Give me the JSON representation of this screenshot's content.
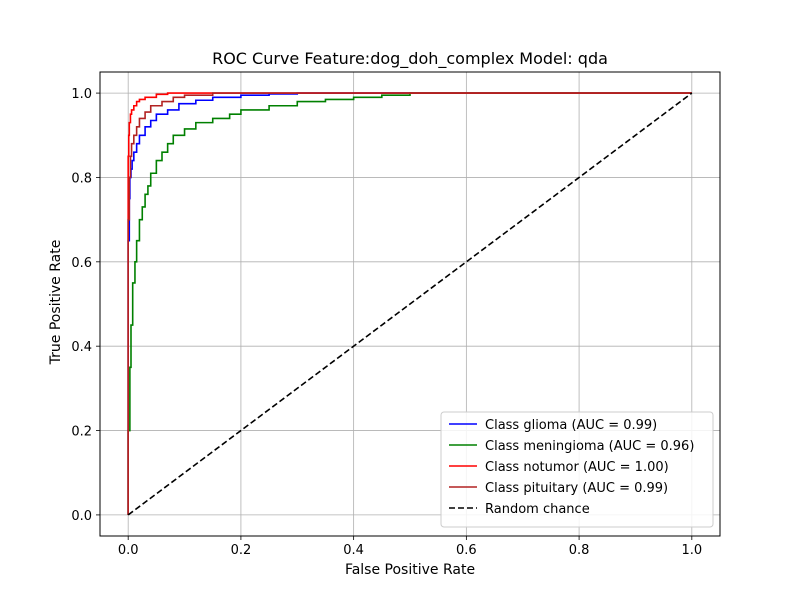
{
  "chart_data": {
    "type": "line",
    "title": "ROC Curve Feature:dog_doh_complex Model: qda",
    "xlabel": "False Positive Rate",
    "ylabel": "True Positive Rate",
    "xlim": [
      -0.05,
      1.05
    ],
    "ylim": [
      -0.05,
      1.05
    ],
    "xticks": [
      0.0,
      0.2,
      0.4,
      0.6,
      0.8,
      1.0
    ],
    "xtick_labels": [
      "0.0",
      "0.2",
      "0.4",
      "0.6",
      "0.8",
      "1.0"
    ],
    "yticks": [
      0.0,
      0.2,
      0.4,
      0.6,
      0.8,
      1.0
    ],
    "ytick_labels": [
      "0.0",
      "0.2",
      "0.4",
      "0.6",
      "0.8",
      "1.0"
    ],
    "grid": true,
    "legend_position": "lower-right",
    "series": [
      {
        "name": "Class glioma (AUC = 0.99)",
        "color": "#0000ff",
        "dashed": false,
        "x": [
          0.0,
          0.0,
          0.002,
          0.003,
          0.005,
          0.007,
          0.01,
          0.015,
          0.02,
          0.03,
          0.04,
          0.05,
          0.07,
          0.09,
          0.12,
          0.15,
          0.2,
          0.25,
          0.3,
          0.4,
          0.6,
          1.0
        ],
        "y": [
          0.0,
          0.45,
          0.65,
          0.75,
          0.8,
          0.82,
          0.84,
          0.86,
          0.88,
          0.9,
          0.92,
          0.935,
          0.95,
          0.96,
          0.975,
          0.983,
          0.99,
          0.995,
          0.998,
          1.0,
          1.0,
          1.0
        ]
      },
      {
        "name": "Class meningioma (AUC = 0.96)",
        "color": "#008000",
        "dashed": false,
        "x": [
          0.0,
          0.003,
          0.005,
          0.008,
          0.012,
          0.015,
          0.02,
          0.025,
          0.03,
          0.035,
          0.04,
          0.05,
          0.06,
          0.07,
          0.08,
          0.1,
          0.12,
          0.15,
          0.18,
          0.2,
          0.25,
          0.3,
          0.35,
          0.4,
          0.45,
          0.5,
          0.57,
          1.0
        ],
        "y": [
          0.0,
          0.2,
          0.35,
          0.45,
          0.55,
          0.6,
          0.65,
          0.7,
          0.73,
          0.76,
          0.78,
          0.81,
          0.84,
          0.86,
          0.88,
          0.9,
          0.915,
          0.93,
          0.94,
          0.95,
          0.96,
          0.97,
          0.98,
          0.985,
          0.99,
          0.995,
          1.0,
          1.0
        ]
      },
      {
        "name": "Class notumor (AUC = 1.00)",
        "color": "#ff0000",
        "dashed": false,
        "x": [
          0.0,
          0.0,
          0.001,
          0.002,
          0.004,
          0.006,
          0.01,
          0.015,
          0.02,
          0.03,
          0.05,
          0.07,
          0.1,
          1.0
        ],
        "y": [
          0.0,
          0.6,
          0.85,
          0.9,
          0.93,
          0.95,
          0.96,
          0.97,
          0.98,
          0.985,
          0.99,
          0.997,
          1.0,
          1.0
        ]
      },
      {
        "name": "Class pituitary (AUC = 0.99)",
        "color": "#b22222",
        "dashed": false,
        "x": [
          0.0,
          0.0,
          0.002,
          0.004,
          0.006,
          0.01,
          0.015,
          0.02,
          0.03,
          0.04,
          0.06,
          0.08,
          0.1,
          0.15,
          0.2,
          0.3,
          1.0
        ],
        "y": [
          0.0,
          0.4,
          0.7,
          0.8,
          0.85,
          0.88,
          0.9,
          0.92,
          0.94,
          0.955,
          0.97,
          0.98,
          0.99,
          0.995,
          1.0,
          1.0,
          1.0
        ]
      },
      {
        "name": "Random chance",
        "color": "#000000",
        "dashed": true,
        "x": [
          0.0,
          1.0
        ],
        "y": [
          0.0,
          1.0
        ]
      }
    ]
  }
}
